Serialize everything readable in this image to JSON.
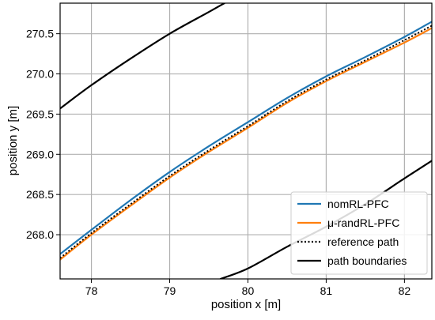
{
  "chart_data": {
    "type": "line",
    "title": "",
    "xlabel": "position x [m]",
    "ylabel": "position y [m]",
    "xlim": [
      77.6,
      82.35
    ],
    "ylim": [
      267.45,
      270.88
    ],
    "x_ticks": [
      78,
      79,
      80,
      81,
      82
    ],
    "x_tick_labels": [
      "78",
      "79",
      "80",
      "81",
      "82"
    ],
    "y_ticks": [
      268.0,
      268.5,
      269.0,
      269.5,
      270.0,
      270.5
    ],
    "y_tick_labels": [
      "268.0",
      "268.5",
      "269.0",
      "269.5",
      "270.0",
      "270.5"
    ],
    "grid": true,
    "legend_position": "bottom-right",
    "series": [
      {
        "name": "nomRL-PFC",
        "color": "#1f77b4",
        "style": "solid",
        "x": [
          77.6,
          78.0,
          78.5,
          79.0,
          79.5,
          80.0,
          80.5,
          81.0,
          81.5,
          82.0,
          82.35
        ],
        "y": [
          267.76,
          268.06,
          268.43,
          268.78,
          269.1,
          269.4,
          269.7,
          269.97,
          270.21,
          270.46,
          270.65
        ]
      },
      {
        "name": "μ-randRL-PFC",
        "color": "#ff7f0e",
        "style": "solid",
        "x": [
          77.6,
          78.0,
          78.5,
          79.0,
          79.5,
          80.0,
          80.5,
          81.0,
          81.5,
          82.0,
          82.35
        ],
        "y": [
          267.69,
          268.0,
          268.36,
          268.71,
          269.03,
          269.33,
          269.64,
          269.91,
          270.15,
          270.39,
          270.57
        ]
      },
      {
        "name": "reference path",
        "color": "#000000",
        "style": "dotted",
        "x": [
          77.6,
          78.0,
          78.5,
          79.0,
          79.5,
          80.0,
          80.5,
          81.0,
          81.5,
          82.0,
          82.35
        ],
        "y": [
          267.71,
          268.02,
          268.38,
          268.73,
          269.05,
          269.35,
          269.66,
          269.93,
          270.17,
          270.42,
          270.6
        ]
      },
      {
        "name": "path boundaries",
        "color": "#000000",
        "style": "solid",
        "x": [
          77.6,
          78.0,
          78.5,
          79.0,
          79.5,
          79.7
        ],
        "y": [
          269.57,
          269.86,
          270.19,
          270.5,
          270.77,
          270.88
        ]
      },
      {
        "name": "",
        "color": "#000000",
        "style": "solid",
        "x": [
          79.65,
          80.0,
          80.5,
          81.0,
          81.5,
          82.0,
          82.35
        ],
        "y": [
          267.45,
          267.58,
          267.85,
          268.1,
          268.38,
          268.7,
          268.92
        ]
      }
    ]
  }
}
